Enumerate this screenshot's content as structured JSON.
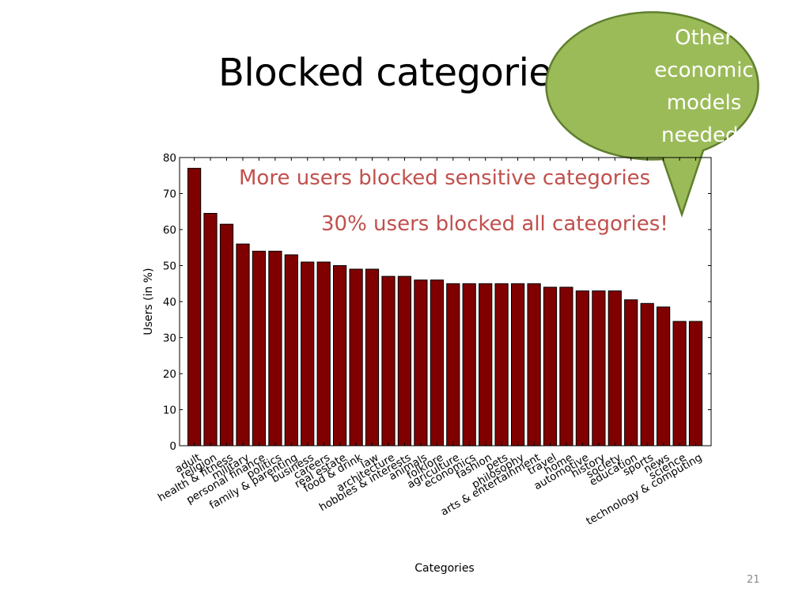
{
  "slide": {
    "title": "Blocked categories",
    "callout": {
      "lines": [
        "Other",
        "economic",
        "models",
        "needed!"
      ],
      "fill": "#9bbb59",
      "stroke": "#5f7f2e"
    },
    "annotations": [
      "More users blocked sensitive categories",
      "30% users blocked all categories!"
    ],
    "annotation_color": "#c0504d",
    "page_number": "21"
  },
  "chart_data": {
    "type": "bar",
    "title": "",
    "xlabel": "Categories",
    "ylabel": "Users (in %)",
    "ylim": [
      0,
      80
    ],
    "yticks": [
      0,
      10,
      20,
      30,
      40,
      50,
      60,
      70,
      80
    ],
    "grid": false,
    "bar_color": "#800000",
    "categories": [
      "adult",
      "religion",
      "health & fitness",
      "military",
      "personal finance",
      "politics",
      "family & parenting",
      "business",
      "careers",
      "real estate",
      "food & drink",
      "law",
      "architecture",
      "hobbies & interests",
      "animals",
      "folklore",
      "agriculture",
      "economics",
      "fashion",
      "pets",
      "philosophy",
      "arts & entertainment",
      "travel",
      "home",
      "automotive",
      "history",
      "society",
      "education",
      "sports",
      "news",
      "science",
      "technology & computing"
    ],
    "values": [
      77,
      64.5,
      61.5,
      56,
      54,
      54,
      53,
      51,
      51,
      50,
      49,
      49,
      47,
      47,
      46,
      46,
      45,
      45,
      45,
      45,
      45,
      45,
      44,
      44,
      43,
      43,
      43,
      40.5,
      39.5,
      38.5,
      34.5,
      34.5
    ]
  }
}
